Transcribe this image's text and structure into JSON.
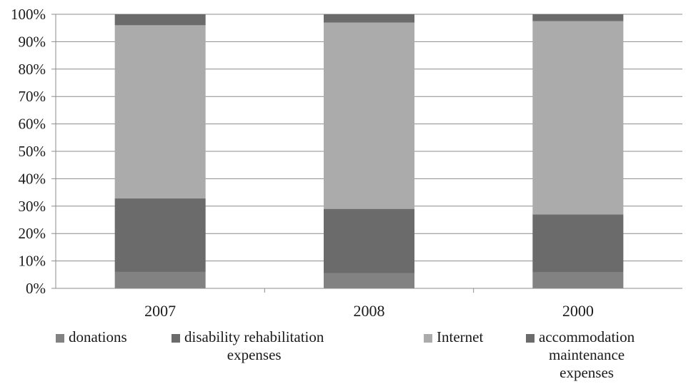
{
  "chart_data": {
    "type": "bar",
    "stacked": true,
    "percent": true,
    "categories": [
      "2007",
      "2008",
      "2000"
    ],
    "series": [
      {
        "name": "donations",
        "values": [
          6,
          5.5,
          5.8
        ],
        "color": "#828282"
      },
      {
        "name": "disability rehabilitation\nexpenses",
        "values": [
          26.8,
          23.5,
          21.2
        ],
        "color": "#6b6b6b"
      },
      {
        "name": "Internet",
        "values": [
          63.2,
          68,
          70.5
        ],
        "color": "#ababab"
      },
      {
        "name": "accommodation\nmaintenance\nexpenses",
        "values": [
          4,
          3,
          2.5
        ],
        "color": "#6b6b6b"
      }
    ],
    "y_ticks": [
      "0%",
      "10%",
      "20%",
      "30%",
      "40%",
      "50%",
      "60%",
      "70%",
      "80%",
      "90%",
      "100%"
    ],
    "ylim": [
      0,
      100
    ],
    "grid": true,
    "legend_position": "bottom"
  }
}
